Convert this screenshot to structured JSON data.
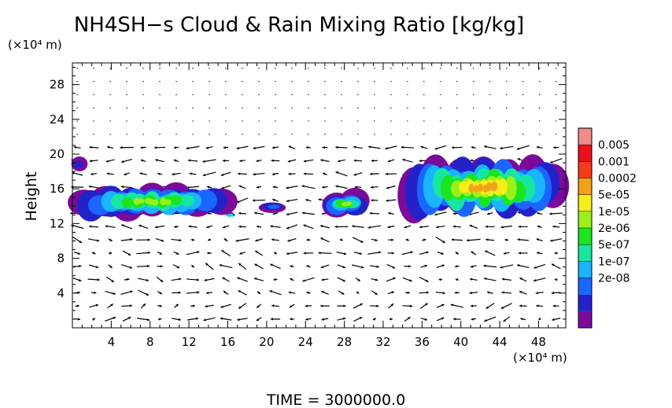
{
  "chart_data": {
    "type": "heatmap",
    "title": "NH4SH−s Cloud & Rain Mixing Ratio [kg/kg]",
    "ylabel": "Height",
    "y_unit": "(×10⁴ m)",
    "x_unit": "(×10⁴ m)",
    "x_ticks": [
      "4",
      "8",
      "12",
      "16",
      "20",
      "24",
      "28",
      "32",
      "36",
      "40",
      "44",
      "48"
    ],
    "x_tick_values": [
      4,
      8,
      12,
      16,
      20,
      24,
      28,
      32,
      36,
      40,
      44,
      48
    ],
    "y_ticks": [
      "4",
      "8",
      "12",
      "16",
      "20",
      "24",
      "28"
    ],
    "y_tick_values": [
      4,
      8,
      12,
      16,
      20,
      24,
      28
    ],
    "xlim": [
      0,
      50.8
    ],
    "ylim": [
      0,
      30.5
    ],
    "colorbar": {
      "labels": [
        "0.005",
        "0.001",
        "0.0002",
        "5e-05",
        "1e-05",
        "2e-06",
        "5e-07",
        "1e-07",
        "2e-08"
      ],
      "colors": [
        "#7b0a9a",
        "#2222c8",
        "#1a66ff",
        "#1ab4ff",
        "#18e6a0",
        "#19e61f",
        "#9cf01a",
        "#f5ee1a",
        "#f5a01a",
        "#f53c1a",
        "#e8121a",
        "#f08c8c"
      ]
    },
    "cloud_regions": [
      {
        "x": [
          0,
          16.5
        ],
        "y": [
          12.5,
          16.5
        ],
        "peak_level": 6
      },
      {
        "x": [
          0.2,
          1.4
        ],
        "y": [
          17.8,
          19.5
        ],
        "peak_level": 1
      },
      {
        "x": [
          16.0,
          16.6
        ],
        "y": [
          12.7,
          13.3
        ],
        "peak_level": 4
      },
      {
        "x": [
          19.6,
          21.6
        ],
        "y": [
          13.4,
          14.6
        ],
        "peak_level": 2
      },
      {
        "x": [
          25.9,
          30.2
        ],
        "y": [
          12.8,
          15.7
        ],
        "peak_level": 6
      },
      {
        "x": [
          34.0,
          50.8
        ],
        "y": [
          12.5,
          19.7
        ],
        "peak_level": 8
      }
    ],
    "footer": "TIME  =  3000000.0"
  }
}
